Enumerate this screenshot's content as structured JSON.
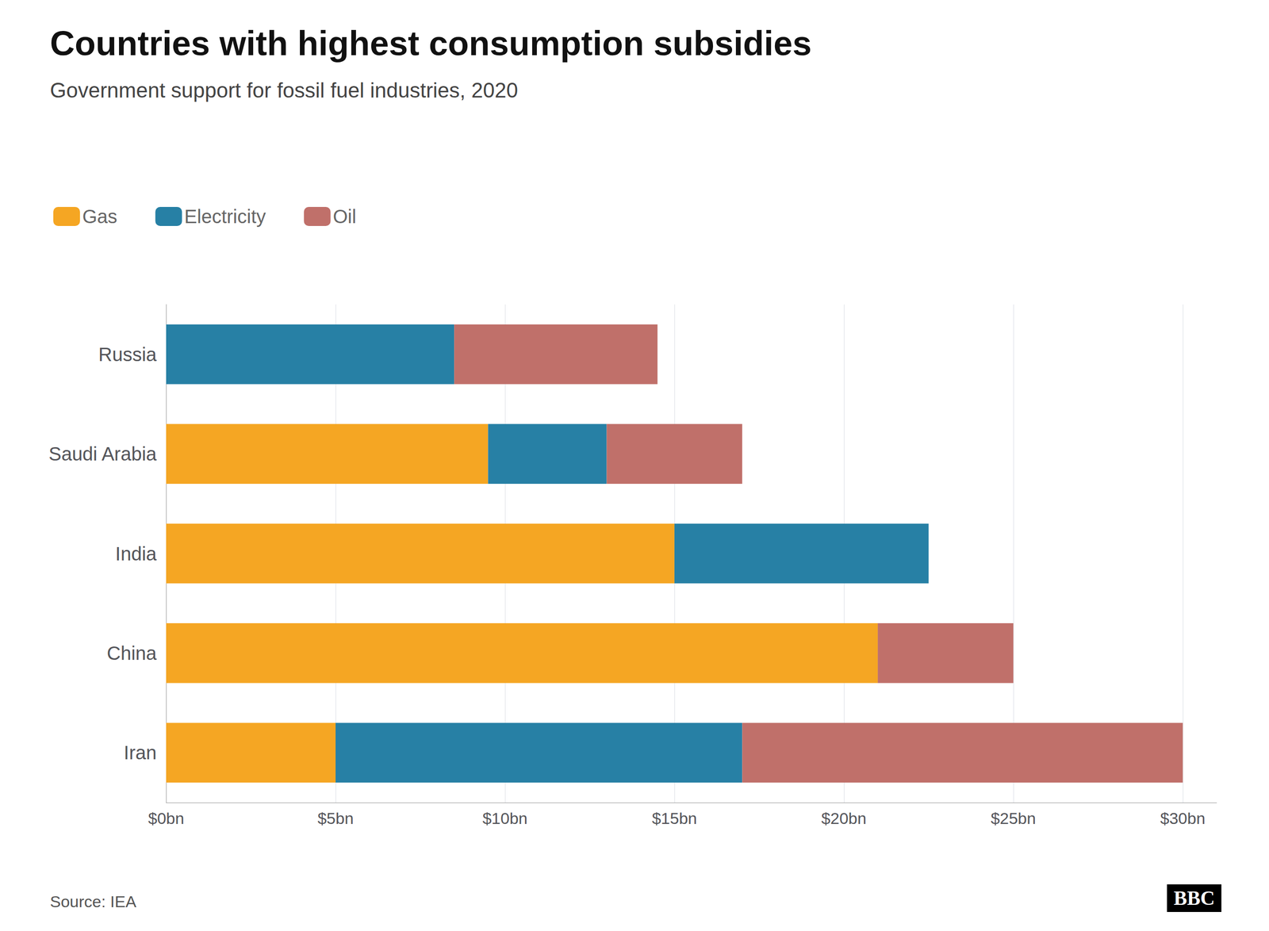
{
  "chart_data": {
    "type": "bar",
    "orientation": "horizontal",
    "stacked": true,
    "title": "Countries with highest consumption subsidies",
    "subtitle": "Government support for fossil fuel industries, 2020",
    "source": "Source: IEA",
    "annotations": [
      "BBC"
    ],
    "categories": [
      "Iran",
      "China",
      "India",
      "Saudi Arabia",
      "Russia"
    ],
    "series": [
      {
        "name": "Gas",
        "color": "#F5A623",
        "values": [
          5.0,
          21.0,
          15.0,
          9.5,
          0.0
        ]
      },
      {
        "name": "Electricity",
        "color": "#2780A5",
        "values": [
          12.0,
          0.0,
          7.5,
          3.5,
          8.5
        ]
      },
      {
        "name": "Oil",
        "color": "#C0706A",
        "values": [
          13.0,
          4.0,
          0.0,
          4.0,
          6.0
        ]
      }
    ],
    "xlim": [
      0,
      31
    ],
    "xticks": [
      {
        "value": 0,
        "label": "$0bn"
      },
      {
        "value": 5,
        "label": "$5bn"
      },
      {
        "value": 10,
        "label": "$10bn"
      },
      {
        "value": 15,
        "label": "$15bn"
      },
      {
        "value": 20,
        "label": "$20bn"
      },
      {
        "value": 25,
        "label": "$25bn"
      },
      {
        "value": 30,
        "label": "$30bn"
      }
    ],
    "grid": true,
    "legend": "upper left"
  }
}
